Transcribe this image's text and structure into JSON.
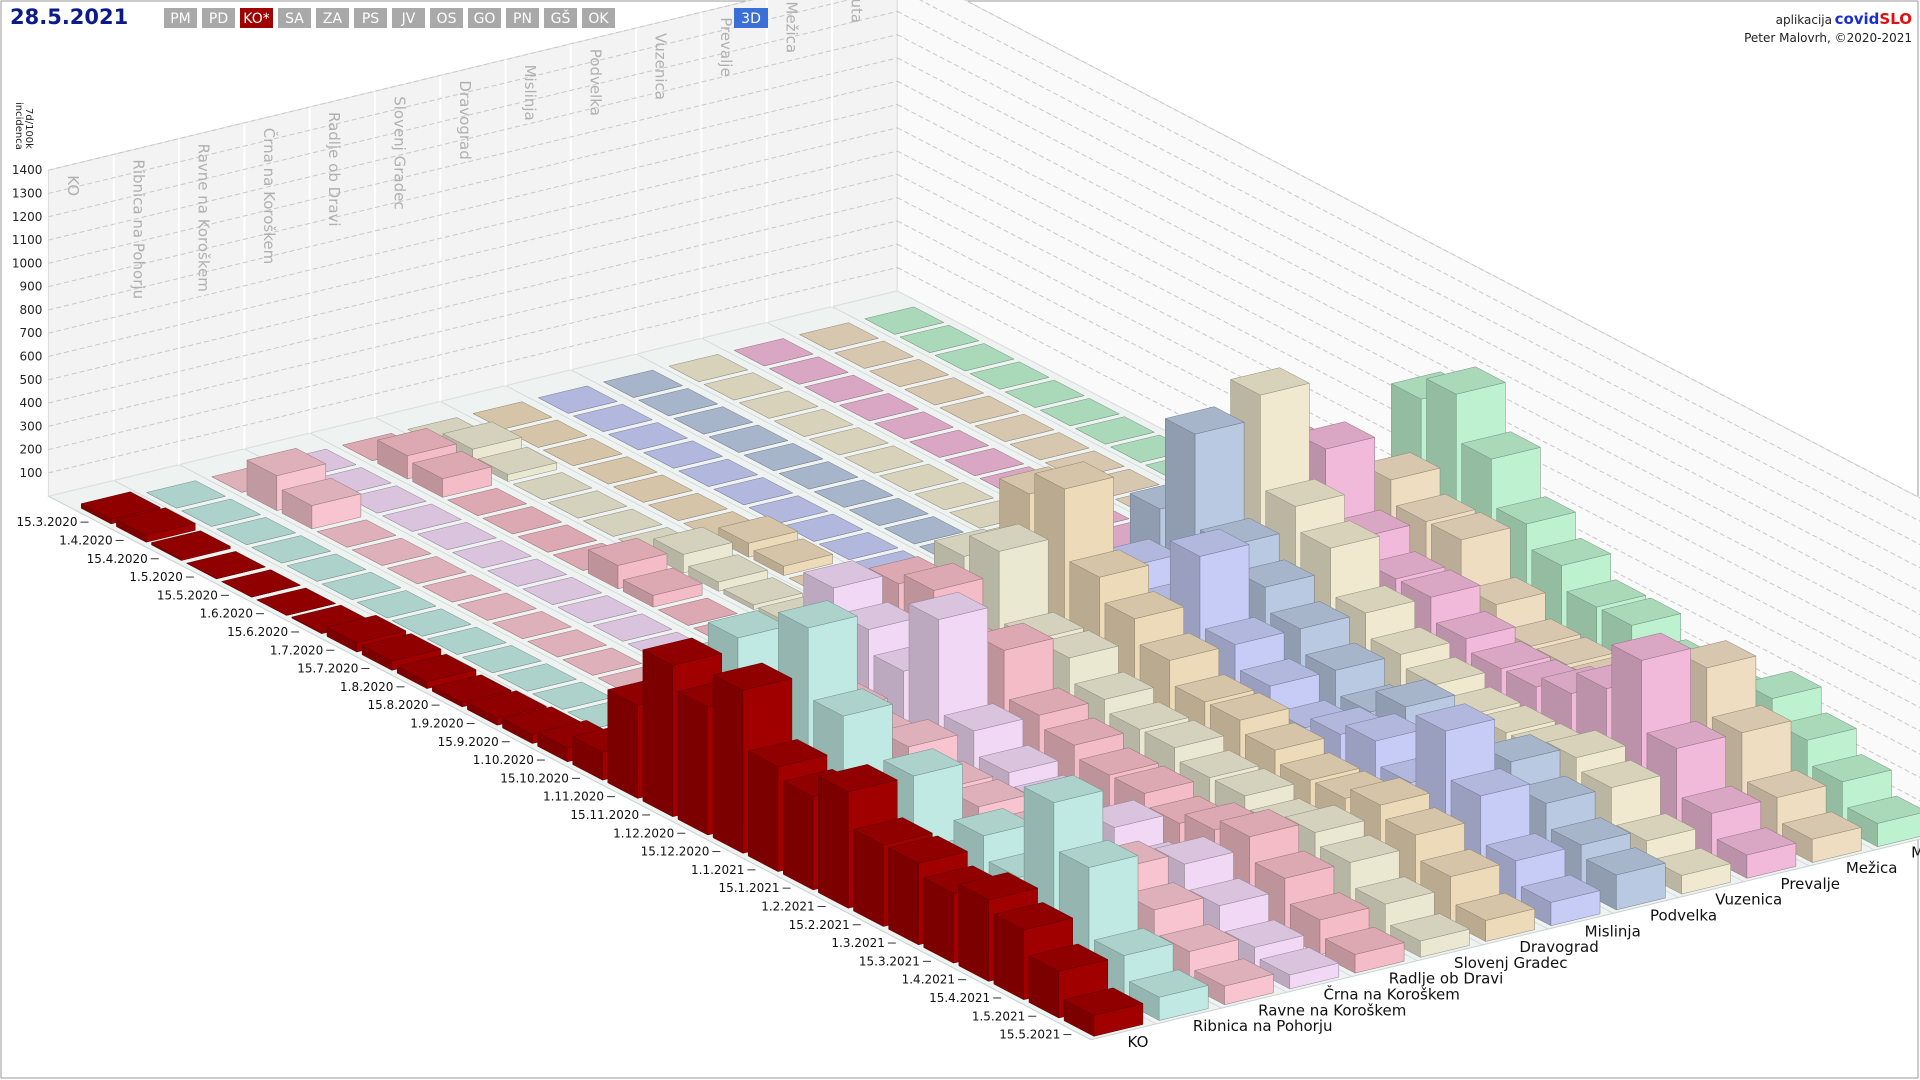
{
  "ui": {
    "date": "28.5.2021",
    "regions": [
      {
        "label": "PM",
        "color": "#a9a9a9"
      },
      {
        "label": "PD",
        "color": "#a9a9a9"
      },
      {
        "label": "KO*",
        "color": "#a00000"
      },
      {
        "label": "SA",
        "color": "#a9a9a9"
      },
      {
        "label": "ZA",
        "color": "#a9a9a9"
      },
      {
        "label": "PS",
        "color": "#a9a9a9"
      },
      {
        "label": "JV",
        "color": "#a9a9a9"
      },
      {
        "label": "OS",
        "color": "#a9a9a9"
      },
      {
        "label": "GO",
        "color": "#a9a9a9"
      },
      {
        "label": "PN",
        "color": "#a9a9a9"
      },
      {
        "label": "GŠ",
        "color": "#a9a9a9"
      },
      {
        "label": "OK",
        "color": "#a9a9a9"
      }
    ],
    "view_button": {
      "label": "3D",
      "color": "#3a6fd8"
    },
    "app_prefix": "aplikacija",
    "app_name_a": "covid",
    "app_name_b": "SLO",
    "author": "Peter Malovrh, ©2020-2021"
  },
  "chart_data": {
    "type": "bar3d",
    "ylabel_line1": "7d/100k",
    "ylabel_line2": "incidenca",
    "ylim": [
      0,
      1400
    ],
    "yticks": [
      100,
      200,
      300,
      400,
      500,
      600,
      700,
      800,
      900,
      1000,
      1100,
      1200,
      1300,
      1400
    ],
    "grid": true,
    "categories": [
      "15.3.2020",
      "1.4.2020",
      "15.4.2020",
      "1.5.2020",
      "15.5.2020",
      "1.6.2020",
      "15.6.2020",
      "1.7.2020",
      "15.7.2020",
      "1.8.2020",
      "15.8.2020",
      "1.9.2020",
      "15.9.2020",
      "1.10.2020",
      "15.10.2020",
      "1.11.2020",
      "15.11.2020",
      "1.12.2020",
      "15.12.2020",
      "1.1.2021",
      "15.1.2021",
      "1.2.2021",
      "15.2.2021",
      "1.3.2021",
      "15.3.2021",
      "1.4.2021",
      "15.4.2021",
      "1.5.2021",
      "15.5.2021"
    ],
    "series": [
      {
        "name": "KO",
        "color": "#a00000",
        "values": [
          20,
          30,
          10,
          0,
          0,
          0,
          5,
          40,
          40,
          30,
          20,
          30,
          40,
          60,
          120,
          400,
          650,
          550,
          700,
          450,
          400,
          500,
          350,
          350,
          300,
          350,
          300,
          200,
          90
        ]
      },
      {
        "name": "Ribnica na Pohorju",
        "color": "#bfe9e2",
        "values": [
          0,
          0,
          0,
          0,
          0,
          0,
          0,
          0,
          0,
          0,
          0,
          0,
          0,
          0,
          150,
          500,
          700,
          400,
          900,
          600,
          300,
          500,
          200,
          400,
          300,
          700,
          500,
          200,
          100
        ]
      },
      {
        "name": "Ravne na Koroškem",
        "color": "#f7c4cf",
        "values": [
          0,
          150,
          100,
          0,
          0,
          0,
          0,
          0,
          0,
          0,
          0,
          0,
          0,
          50,
          250,
          500,
          600,
          400,
          350,
          400,
          300,
          300,
          250,
          300,
          250,
          350,
          250,
          150,
          80
        ]
      },
      {
        "name": "Črna na Koroškem",
        "color": "#f1d9f5",
        "values": [
          0,
          0,
          0,
          0,
          0,
          0,
          0,
          0,
          0,
          0,
          0,
          0,
          0,
          0,
          200,
          700,
          600,
          500,
          800,
          400,
          300,
          250,
          200,
          300,
          200,
          300,
          200,
          100,
          60
        ]
      },
      {
        "name": "Radlje ob Dravi",
        "color": "#f4bcc6",
        "values": [
          0,
          100,
          80,
          0,
          0,
          0,
          0,
          100,
          50,
          0,
          0,
          0,
          0,
          100,
          300,
          650,
          700,
          500,
          600,
          400,
          350,
          300,
          300,
          250,
          300,
          350,
          250,
          150,
          80
        ]
      },
      {
        "name": "Slovenj Gradec",
        "color": "#ebe8d2",
        "values": [
          0,
          60,
          30,
          0,
          0,
          0,
          0,
          80,
          40,
          20,
          20,
          30,
          50,
          100,
          350,
          700,
          800,
          500,
          500,
          400,
          350,
          350,
          300,
          300,
          250,
          300,
          250,
          150,
          70
        ]
      },
      {
        "name": "Dravograd",
        "color": "#eddab9",
        "values": [
          0,
          0,
          0,
          0,
          0,
          0,
          0,
          60,
          40,
          0,
          0,
          0,
          30,
          100,
          400,
          900,
          1000,
          700,
          600,
          500,
          400,
          400,
          350,
          300,
          300,
          350,
          300,
          200,
          90
        ]
      },
      {
        "name": "Mislinja",
        "color": "#c6ccf6",
        "values": [
          0,
          0,
          0,
          0,
          0,
          0,
          0,
          0,
          0,
          0,
          0,
          0,
          0,
          0,
          150,
          400,
          600,
          500,
          800,
          500,
          400,
          300,
          350,
          400,
          300,
          600,
          400,
          200,
          100
        ]
      },
      {
        "name": "Podvelka",
        "color": "#b9c9e2",
        "values": [
          0,
          0,
          0,
          0,
          0,
          0,
          0,
          0,
          0,
          0,
          0,
          0,
          0,
          50,
          300,
          700,
          1100,
          700,
          600,
          500,
          400,
          300,
          400,
          300,
          250,
          400,
          300,
          200,
          150
        ]
      },
      {
        "name": "Vuzenica",
        "color": "#f0e9d0",
        "values": [
          0,
          0,
          0,
          0,
          0,
          0,
          0,
          0,
          0,
          0,
          80,
          60,
          0,
          100,
          500,
          900,
          1200,
          800,
          700,
          500,
          400,
          350,
          300,
          300,
          300,
          350,
          300,
          150,
          80
        ]
      },
      {
        "name": "Prevalje",
        "color": "#f1bada",
        "values": [
          0,
          0,
          0,
          0,
          0,
          0,
          0,
          0,
          0,
          0,
          0,
          0,
          0,
          50,
          300,
          800,
          900,
          600,
          500,
          500,
          400,
          350,
          350,
          400,
          500,
          700,
          400,
          200,
          100
        ]
      },
      {
        "name": "Mežica",
        "color": "#efddc2",
        "values": [
          0,
          0,
          0,
          0,
          0,
          0,
          0,
          0,
          0,
          0,
          0,
          0,
          0,
          50,
          300,
          500,
          700,
          600,
          600,
          400,
          300,
          300,
          300,
          300,
          400,
          600,
          400,
          200,
          100
        ]
      },
      {
        "name": "Muta",
        "color": "#bdf1cf",
        "values": [
          0,
          0,
          0,
          0,
          0,
          0,
          0,
          0,
          0,
          0,
          0,
          0,
          0,
          100,
          400,
          900,
          1000,
          800,
          600,
          500,
          400,
          400,
          300,
          300,
          300,
          400,
          300,
          200,
          100
        ]
      }
    ]
  }
}
